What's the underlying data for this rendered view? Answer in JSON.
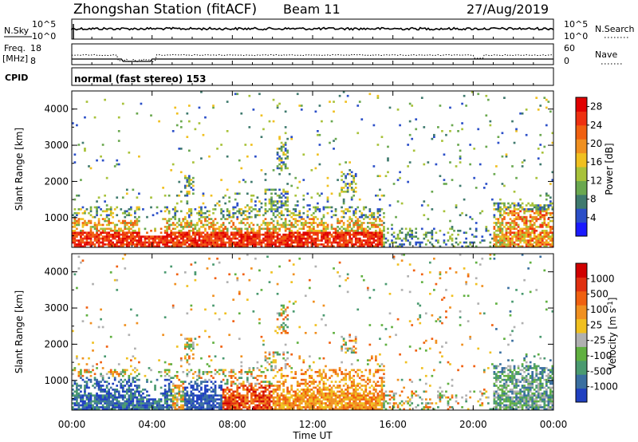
{
  "header": {
    "title": "Zhongshan Station (fitACF)",
    "beam": "Beam 11",
    "date": "27/Aug/2019"
  },
  "noise_panel": {
    "left_label": "N.Sky",
    "right_label": "N.Search",
    "left_ticks": [
      "10^5",
      "10^0"
    ],
    "right_ticks": [
      "10^5",
      "10^0"
    ]
  },
  "freq_panel": {
    "left_label_1": "Freq.",
    "left_label_2": "[MHz]",
    "right_label": "Nave",
    "left_ticks": [
      "18",
      "8"
    ],
    "right_ticks": [
      "60",
      "0"
    ]
  },
  "cpid": {
    "label": "CPID",
    "value": "normal (fast stereo) 153"
  },
  "colors": {
    "power": [
      "#1a1aff",
      "#2b4fc8",
      "#3f7a6e",
      "#6aa84f",
      "#a8c23a",
      "#f0c020",
      "#f09020",
      "#f06010",
      "#ee3010",
      "#e00000"
    ],
    "velocity": [
      "#2040c0",
      "#3a6fa0",
      "#4a9a70",
      "#60b040",
      "#b0b0b0",
      "#f0c020",
      "#f09020",
      "#f06010",
      "#e03010",
      "#d00000"
    ]
  },
  "chart_data": [
    {
      "type": "heatmap",
      "ylabel": "Slant Range [km]",
      "xlabel": "Time UT",
      "x_ticks": [
        "00:00",
        "04:00",
        "08:00",
        "12:00",
        "16:00",
        "20:00",
        "00:00"
      ],
      "y_ticks": [
        "1000",
        "2000",
        "3000",
        "4000"
      ],
      "x_range_hours": [
        0,
        24
      ],
      "y_range_km": [
        180,
        4500
      ],
      "colorbar_label": "Power [dB]",
      "colorbar_ticks": [
        "4",
        "8",
        "12",
        "16",
        "20",
        "24",
        "28"
      ],
      "colorbar_range": [
        0,
        30
      ]
    },
    {
      "type": "heatmap",
      "ylabel": "Slant Range [km]",
      "xlabel": "Time UT",
      "x_ticks": [
        "00:00",
        "04:00",
        "08:00",
        "12:00",
        "16:00",
        "20:00",
        "00:00"
      ],
      "y_ticks": [
        "1000",
        "2000",
        "3000",
        "4000"
      ],
      "x_range_hours": [
        0,
        24
      ],
      "y_range_km": [
        180,
        4500
      ],
      "colorbar_label": "Velocity [m s-1]",
      "colorbar_ticks": [
        "1000",
        "500",
        "100",
        "25",
        "-25",
        "-100",
        "-500",
        "-1000"
      ]
    }
  ],
  "x_axis_title": "Time UT"
}
